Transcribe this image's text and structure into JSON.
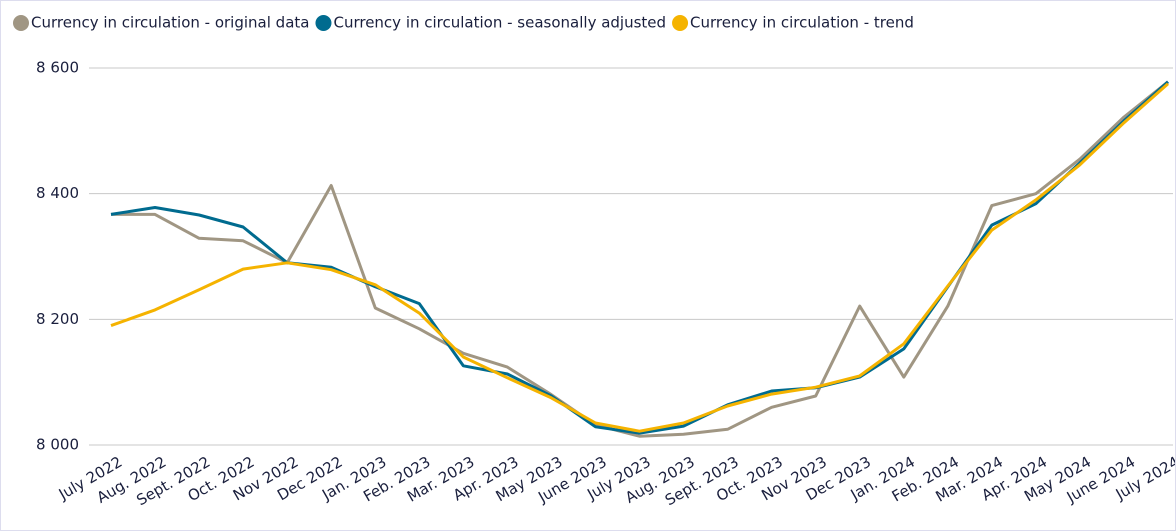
{
  "chart_data": {
    "type": "line",
    "categories": [
      "July 2022",
      "Aug. 2022",
      "Sept. 2022",
      "Oct. 2022",
      "Nov 2022",
      "Dec 2022",
      "Jan. 2023",
      "Feb. 2023",
      "Mar. 2023",
      "Apr. 2023",
      "May 2023",
      "June 2023",
      "July 2023",
      "Aug. 2023",
      "Sept. 2023",
      "Oct. 2023",
      "Nov 2023",
      "Dec 2023",
      "Jan. 2024",
      "Feb. 2024",
      "Mar. 2024",
      "Apr. 2024",
      "May 2024",
      "June 2024",
      "July 2024"
    ],
    "series": [
      {
        "name": "Currency in circulation - original data",
        "color": "#a09683",
        "values": [
          8367,
          8367,
          8329,
          8325,
          8290,
          8413,
          8218,
          8185,
          8146,
          8124,
          8080,
          8032,
          8014,
          8017,
          8025,
          8060,
          8078,
          8221,
          8108,
          8221,
          8381,
          8400,
          8455,
          8522,
          8578
        ]
      },
      {
        "name": "Currency in circulation - seasonally adjusted",
        "color": "#006b8f",
        "values": [
          8367,
          8378,
          8366,
          8347,
          8290,
          8283,
          8252,
          8225,
          8126,
          8113,
          8078,
          8029,
          8019,
          8030,
          8064,
          8086,
          8091,
          8108,
          8153,
          8252,
          8350,
          8384,
          8449,
          8516,
          8578
        ]
      },
      {
        "name": "Currency in circulation - trend",
        "color": "#f5b300",
        "values": [
          8190,
          8215,
          8247,
          8280,
          8290,
          8279,
          8255,
          8210,
          8140,
          8107,
          8075,
          8035,
          8022,
          8035,
          8062,
          8081,
          8092,
          8110,
          8161,
          8253,
          8342,
          8390,
          8446,
          8513,
          8575
        ]
      }
    ],
    "ylim": [
      8000,
      8600
    ],
    "yticks": [
      {
        "value": 8000,
        "label": "8 000"
      },
      {
        "value": 8200,
        "label": "8 200"
      },
      {
        "value": 8400,
        "label": "8 400"
      },
      {
        "value": 8600,
        "label": "8 600"
      }
    ],
    "grid": true,
    "legend": "top"
  }
}
